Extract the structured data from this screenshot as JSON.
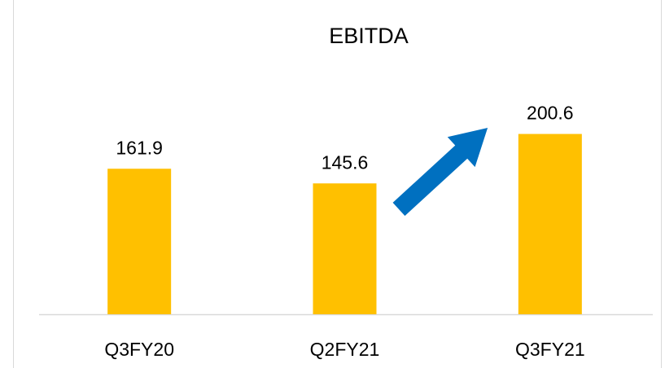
{
  "chart_data": {
    "type": "bar",
    "title": "EBITDA",
    "categories": [
      "Q3FY20",
      "Q2FY21",
      "Q3FY21"
    ],
    "values": [
      161.9,
      145.6,
      200.6
    ],
    "color": "#ffc000",
    "ylim": [
      0,
      250
    ]
  }
}
